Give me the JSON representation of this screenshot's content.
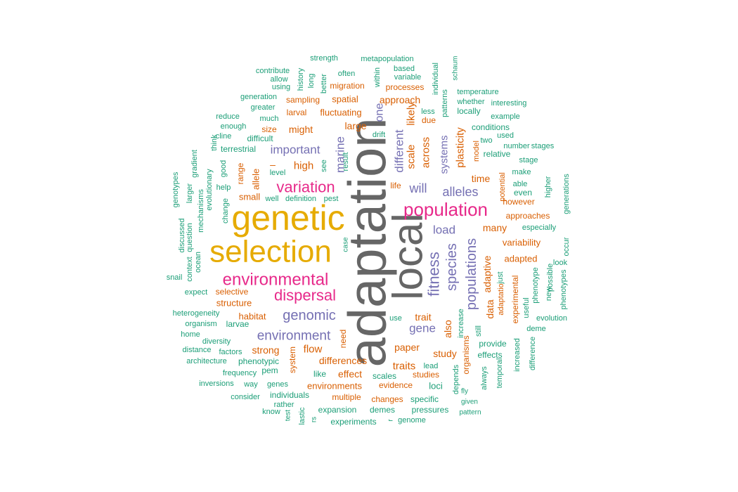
{
  "colors": {
    "gray": "#666666",
    "gold": "#E6AB02",
    "pink": "#E7298A",
    "purple": "#7570B3",
    "orange": "#D95F02",
    "teal": "#1B9E77"
  },
  "words": [
    {
      "text": "adaptation",
      "color": "gray"
    },
    {
      "text": "local",
      "color": "gray"
    },
    {
      "text": "genetic",
      "color": "gold"
    },
    {
      "text": "selection",
      "color": "gold"
    },
    {
      "text": "population",
      "color": "pink"
    },
    {
      "text": "environmental",
      "color": "pink"
    },
    {
      "text": "variation",
      "color": "pink"
    },
    {
      "text": "dispersal",
      "color": "pink"
    },
    {
      "text": "genomic",
      "color": "purple"
    },
    {
      "text": "environment",
      "color": "purple"
    },
    {
      "text": "fitness",
      "color": "purple"
    },
    {
      "text": "species",
      "color": "purple"
    },
    {
      "text": "populations",
      "color": "purple"
    },
    {
      "text": "alleles",
      "color": "purple"
    },
    {
      "text": "will",
      "color": "purple"
    },
    {
      "text": "important",
      "color": "purple"
    },
    {
      "text": "marine",
      "color": "purple"
    },
    {
      "text": "gene",
      "color": "purple"
    },
    {
      "text": "load",
      "color": "purple"
    },
    {
      "text": "different",
      "color": "purple"
    },
    {
      "text": "one",
      "color": "purple"
    },
    {
      "text": "systems",
      "color": "purple"
    },
    {
      "text": "scale",
      "color": "orange"
    },
    {
      "text": "across",
      "color": "orange"
    },
    {
      "text": "likely",
      "color": "orange"
    },
    {
      "text": "plasticity",
      "color": "orange"
    },
    {
      "text": "high",
      "color": "orange"
    },
    {
      "text": "might",
      "color": "orange"
    },
    {
      "text": "large",
      "color": "orange"
    },
    {
      "text": "traits",
      "color": "orange"
    },
    {
      "text": "differences",
      "color": "orange"
    },
    {
      "text": "flow",
      "color": "orange"
    },
    {
      "text": "strong",
      "color": "orange"
    },
    {
      "text": "paper",
      "color": "orange"
    },
    {
      "text": "adaptive",
      "color": "orange"
    },
    {
      "text": "data",
      "color": "orange"
    },
    {
      "text": "also",
      "color": "orange"
    },
    {
      "text": "study",
      "color": "orange"
    },
    {
      "text": "effect",
      "color": "orange"
    },
    {
      "text": "many",
      "color": "orange"
    },
    {
      "text": "time",
      "color": "orange"
    },
    {
      "text": "trait",
      "color": "orange"
    },
    {
      "text": "environments",
      "color": "orange"
    },
    {
      "text": "habitat",
      "color": "orange"
    },
    {
      "text": "structure",
      "color": "orange"
    },
    {
      "text": "adapted",
      "color": "orange"
    },
    {
      "text": "variability",
      "color": "orange"
    },
    {
      "text": "–",
      "color": "orange"
    },
    {
      "text": "approach",
      "color": "orange"
    },
    {
      "text": "spatial",
      "color": "orange"
    },
    {
      "text": "fluctuating",
      "color": "orange"
    },
    {
      "text": "allele",
      "color": "orange"
    },
    {
      "text": "small",
      "color": "orange"
    },
    {
      "text": "selective",
      "color": "orange"
    },
    {
      "text": "processes",
      "color": "orange"
    },
    {
      "text": "migration",
      "color": "orange"
    },
    {
      "text": "sampling",
      "color": "orange"
    },
    {
      "text": "larval",
      "color": "orange"
    },
    {
      "text": "size",
      "color": "orange"
    },
    {
      "text": "due",
      "color": "orange"
    },
    {
      "text": "range",
      "color": "orange"
    },
    {
      "text": "life",
      "color": "orange"
    },
    {
      "text": "approaches",
      "color": "orange"
    },
    {
      "text": "experimental",
      "color": "orange"
    },
    {
      "text": "evidence",
      "color": "orange"
    },
    {
      "text": "changes",
      "color": "orange"
    },
    {
      "text": "studies",
      "color": "orange"
    },
    {
      "text": "multiple",
      "color": "orange"
    },
    {
      "text": "need",
      "color": "orange"
    },
    {
      "text": "system",
      "color": "orange"
    },
    {
      "text": "model",
      "color": "orange"
    },
    {
      "text": "potential",
      "color": "orange"
    },
    {
      "text": "however",
      "color": "orange"
    },
    {
      "text": "adaptatio",
      "color": "orange"
    },
    {
      "text": "organisms",
      "color": "orange"
    },
    {
      "text": "specific",
      "color": "teal"
    },
    {
      "text": "expansion",
      "color": "teal"
    },
    {
      "text": "demes",
      "color": "teal"
    },
    {
      "text": "pressures",
      "color": "teal"
    },
    {
      "text": "experiments",
      "color": "teal"
    },
    {
      "text": "genome",
      "color": "teal"
    },
    {
      "text": "individuals",
      "color": "teal"
    },
    {
      "text": "rather",
      "color": "teal"
    },
    {
      "text": "know",
      "color": "teal"
    },
    {
      "text": "test",
      "color": "teal"
    },
    {
      "text": "lastic",
      "color": "teal"
    },
    {
      "text": "rs",
      "color": "teal"
    },
    {
      "text": "r",
      "color": "teal"
    },
    {
      "text": "pattern",
      "color": "teal"
    },
    {
      "text": "given",
      "color": "teal"
    },
    {
      "text": "fly",
      "color": "teal"
    },
    {
      "text": "loci",
      "color": "teal"
    },
    {
      "text": "lead",
      "color": "teal"
    },
    {
      "text": "scales",
      "color": "teal"
    },
    {
      "text": "like",
      "color": "teal"
    },
    {
      "text": "genes",
      "color": "teal"
    },
    {
      "text": "way",
      "color": "teal"
    },
    {
      "text": "consider",
      "color": "teal"
    },
    {
      "text": "inversions",
      "color": "teal"
    },
    {
      "text": "frequency",
      "color": "teal"
    },
    {
      "text": "pem",
      "color": "teal"
    },
    {
      "text": "architecture",
      "color": "teal"
    },
    {
      "text": "phenotypic",
      "color": "teal"
    },
    {
      "text": "factors",
      "color": "teal"
    },
    {
      "text": "distance",
      "color": "teal"
    },
    {
      "text": "diversity",
      "color": "teal"
    },
    {
      "text": "home",
      "color": "teal"
    },
    {
      "text": "organism",
      "color": "teal"
    },
    {
      "text": "larvae",
      "color": "teal"
    },
    {
      "text": "heterogeneity",
      "color": "teal"
    },
    {
      "text": "expect",
      "color": "teal"
    },
    {
      "text": "snail",
      "color": "teal"
    },
    {
      "text": "ocean",
      "color": "teal"
    },
    {
      "text": "context",
      "color": "teal"
    },
    {
      "text": "question",
      "color": "teal"
    },
    {
      "text": "discussed",
      "color": "teal"
    },
    {
      "text": "mechanisms",
      "color": "teal"
    },
    {
      "text": "larger",
      "color": "teal"
    },
    {
      "text": "genotypes",
      "color": "teal"
    },
    {
      "text": "gradient",
      "color": "teal"
    },
    {
      "text": "evolutionary",
      "color": "teal"
    },
    {
      "text": "help",
      "color": "teal"
    },
    {
      "text": "good",
      "color": "teal"
    },
    {
      "text": "change",
      "color": "teal"
    },
    {
      "text": "well",
      "color": "teal"
    },
    {
      "text": "definition",
      "color": "teal"
    },
    {
      "text": "pest",
      "color": "teal"
    },
    {
      "text": "level",
      "color": "teal"
    },
    {
      "text": "see",
      "color": "teal"
    },
    {
      "text": "result",
      "color": "teal"
    },
    {
      "text": "terrestrial",
      "color": "teal"
    },
    {
      "text": "cline",
      "color": "teal"
    },
    {
      "text": "think",
      "color": "teal"
    },
    {
      "text": "difficult",
      "color": "teal"
    },
    {
      "text": "enough",
      "color": "teal"
    },
    {
      "text": "reduce",
      "color": "teal"
    },
    {
      "text": "much",
      "color": "teal"
    },
    {
      "text": "greater",
      "color": "teal"
    },
    {
      "text": "generation",
      "color": "teal"
    },
    {
      "text": "using",
      "color": "teal"
    },
    {
      "text": "allow",
      "color": "teal"
    },
    {
      "text": "contribute",
      "color": "teal"
    },
    {
      "text": "history",
      "color": "teal"
    },
    {
      "text": "long",
      "color": "teal"
    },
    {
      "text": "better",
      "color": "teal"
    },
    {
      "text": "often",
      "color": "teal"
    },
    {
      "text": "within",
      "color": "teal"
    },
    {
      "text": "strength",
      "color": "teal"
    },
    {
      "text": "metapopulation",
      "color": "teal"
    },
    {
      "text": "based",
      "color": "teal"
    },
    {
      "text": "variable",
      "color": "teal"
    },
    {
      "text": "individual",
      "color": "teal"
    },
    {
      "text": "schaum",
      "color": "teal"
    },
    {
      "text": "patterns",
      "color": "teal"
    },
    {
      "text": "temperature",
      "color": "teal"
    },
    {
      "text": "whether",
      "color": "teal"
    },
    {
      "text": "interesting",
      "color": "teal"
    },
    {
      "text": "less",
      "color": "teal"
    },
    {
      "text": "locally",
      "color": "teal"
    },
    {
      "text": "example",
      "color": "teal"
    },
    {
      "text": "conditions",
      "color": "teal"
    },
    {
      "text": "used",
      "color": "teal"
    },
    {
      "text": "two",
      "color": "teal"
    },
    {
      "text": "number",
      "color": "teal"
    },
    {
      "text": "stages",
      "color": "teal"
    },
    {
      "text": "relative",
      "color": "teal"
    },
    {
      "text": "stage",
      "color": "teal"
    },
    {
      "text": "make",
      "color": "teal"
    },
    {
      "text": "able",
      "color": "teal"
    },
    {
      "text": "even",
      "color": "teal"
    },
    {
      "text": "higher",
      "color": "teal"
    },
    {
      "text": "generations",
      "color": "teal"
    },
    {
      "text": "especially",
      "color": "teal"
    },
    {
      "text": "occur",
      "color": "teal"
    },
    {
      "text": "look",
      "color": "teal"
    },
    {
      "text": "possible",
      "color": "teal"
    },
    {
      "text": "phenotype",
      "color": "teal"
    },
    {
      "text": "new",
      "color": "teal"
    },
    {
      "text": "phenotypes",
      "color": "teal"
    },
    {
      "text": "just",
      "color": "teal"
    },
    {
      "text": "useful",
      "color": "teal"
    },
    {
      "text": "evolution",
      "color": "teal"
    },
    {
      "text": "deme",
      "color": "teal"
    },
    {
      "text": "difference",
      "color": "teal"
    },
    {
      "text": "increased",
      "color": "teal"
    },
    {
      "text": "temporal",
      "color": "teal"
    },
    {
      "text": "effects",
      "color": "teal"
    },
    {
      "text": "provide",
      "color": "teal"
    },
    {
      "text": "always",
      "color": "teal"
    },
    {
      "text": "still",
      "color": "teal"
    },
    {
      "text": "depends",
      "color": "teal"
    },
    {
      "text": "increase",
      "color": "teal"
    },
    {
      "text": "use",
      "color": "teal"
    },
    {
      "text": "drift",
      "color": "teal"
    },
    {
      "text": "case",
      "color": "teal"
    }
  ]
}
